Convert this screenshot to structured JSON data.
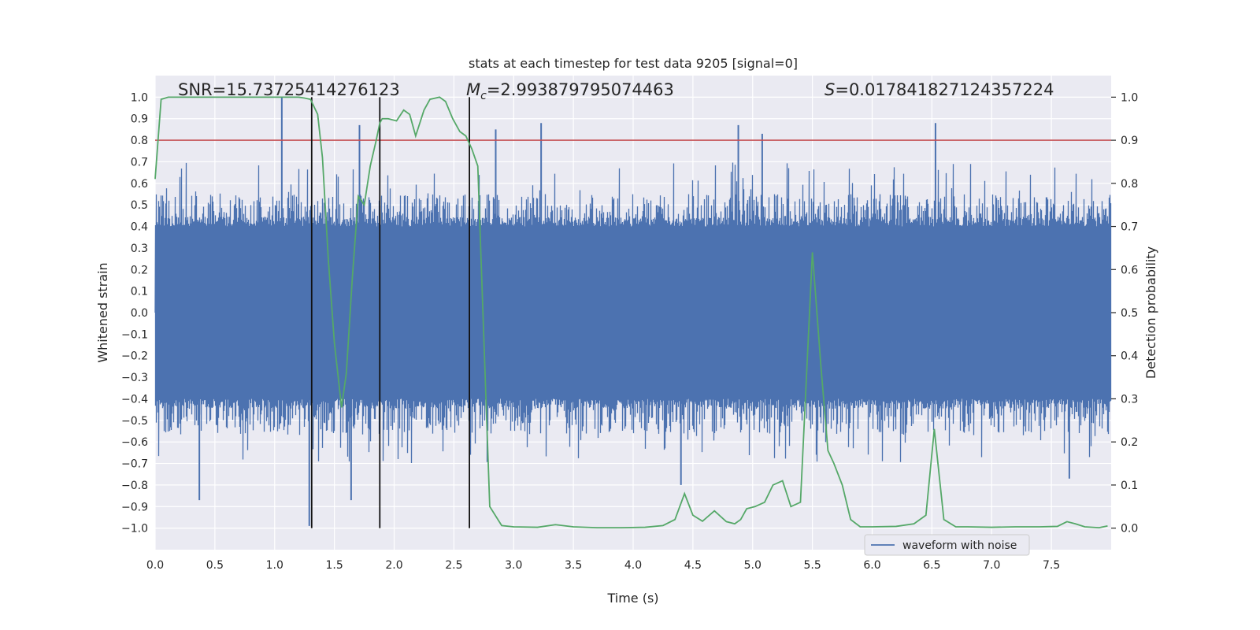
{
  "chart_data": {
    "type": "line",
    "title": "stats at each timestep for test data 9205 [signal=0]",
    "xlabel": "Time (s)",
    "ylabel_left": "Whitened strain",
    "ylabel_right": "Detection probability",
    "xlim": [
      0,
      8
    ],
    "ylim_left": [
      -1.1,
      1.1
    ],
    "ylim_right": [
      -0.05,
      1.05
    ],
    "xticks": [
      0.0,
      0.5,
      1.0,
      1.5,
      2.0,
      2.5,
      3.0,
      3.5,
      4.0,
      4.5,
      5.0,
      5.5,
      6.0,
      6.5,
      7.0,
      7.5
    ],
    "xtick_labels": [
      "0.0",
      "0.5",
      "1.0",
      "1.5",
      "2.0",
      "2.5",
      "3.0",
      "3.5",
      "4.0",
      "4.5",
      "5.0",
      "5.5",
      "6.0",
      "6.5",
      "7.0",
      "7.5"
    ],
    "yticks_left": [
      1.0,
      0.9,
      0.8,
      0.7,
      0.6,
      0.5,
      0.4,
      0.3,
      0.2,
      0.1,
      0.0,
      -0.1,
      -0.2,
      -0.3,
      -0.4,
      -0.5,
      -0.6,
      -0.7,
      -0.8,
      -0.9,
      -1.0
    ],
    "ytick_labels_left": [
      "1.0",
      "0.9",
      "0.8",
      "0.7",
      "0.6",
      "0.5",
      "0.4",
      "0.3",
      "0.2",
      "0.1",
      "0.0",
      "−0.1",
      "−0.2",
      "−0.3",
      "−0.4",
      "−0.5",
      "−0.6",
      "−0.7",
      "−0.8",
      "−0.9",
      "−1.0"
    ],
    "yticks_right": [
      1.0,
      0.9,
      0.8,
      0.7,
      0.6,
      0.5,
      0.4,
      0.3,
      0.2,
      0.1,
      0.0
    ],
    "ytick_labels_right": [
      "1.0",
      "0.9",
      "0.8",
      "0.7",
      "0.6",
      "0.5",
      "0.4",
      "0.3",
      "0.2",
      "0.1",
      "0.0"
    ],
    "threshold": {
      "axis": "right",
      "value": 0.9,
      "color": "#c44e52"
    },
    "vlines": [
      {
        "x": 1.31,
        "ymin": -1.0,
        "ymax": 1.0
      },
      {
        "x": 1.88,
        "ymin": -1.0,
        "ymax": 1.0
      },
      {
        "x": 2.63,
        "ymin": -1.0,
        "ymax": 1.0
      }
    ],
    "annotations": {
      "snr": "SNR=15.73725414276123",
      "mc_symbol": "M",
      "mc_sub": "c",
      "mc_value": "=2.993879795074463",
      "s_symbol": "S",
      "s_value": "=0.017841827124357224"
    },
    "legend": {
      "label": "waveform with noise",
      "location": "lower-right"
    },
    "waveform": {
      "name": "waveform with noise",
      "color": "#4c72b0",
      "dense_band": 0.4,
      "typical_peak": 0.55,
      "tallest_peaks": [
        {
          "x": 1.06,
          "y": 1.0
        },
        {
          "x": 1.29,
          "y": -0.99
        },
        {
          "x": 1.71,
          "y": 0.87
        },
        {
          "x": 2.85,
          "y": 0.85
        },
        {
          "x": 3.23,
          "y": 0.88
        },
        {
          "x": 4.88,
          "y": 0.87
        },
        {
          "x": 5.08,
          "y": 0.83
        },
        {
          "x": 6.53,
          "y": 0.88
        },
        {
          "x": 0.37,
          "y": -0.87
        },
        {
          "x": 1.64,
          "y": -0.87
        },
        {
          "x": 4.4,
          "y": -0.8
        },
        {
          "x": 7.65,
          "y": -0.77
        }
      ]
    },
    "probability": {
      "name": "detection probability",
      "color": "#55a868",
      "x": [
        0.0,
        0.05,
        0.11,
        0.2,
        0.3,
        0.5,
        0.7,
        0.9,
        1.05,
        1.2,
        1.25,
        1.3,
        1.36,
        1.4,
        1.45,
        1.5,
        1.56,
        1.6,
        1.65,
        1.7,
        1.75,
        1.8,
        1.85,
        1.88,
        1.9,
        1.95,
        2.02,
        2.08,
        2.13,
        2.18,
        2.25,
        2.3,
        2.38,
        2.43,
        2.49,
        2.55,
        2.6,
        2.65,
        2.7,
        2.8,
        2.9,
        3.0,
        3.2,
        3.35,
        3.5,
        3.7,
        3.9,
        4.1,
        4.25,
        4.35,
        4.43,
        4.5,
        4.58,
        4.68,
        4.78,
        4.85,
        4.9,
        4.95,
        5.02,
        5.1,
        5.17,
        5.25,
        5.32,
        5.4,
        5.5,
        5.57,
        5.63,
        5.68,
        5.75,
        5.82,
        5.9,
        6.0,
        6.2,
        6.35,
        6.45,
        6.52,
        6.6,
        6.7,
        6.8,
        7.0,
        7.2,
        7.4,
        7.55,
        7.63,
        7.7,
        7.78,
        7.9,
        7.97
      ],
      "y": [
        0.81,
        0.995,
        1.0,
        1.0,
        1.0,
        1.0,
        1.0,
        1.0,
        1.0,
        1.0,
        0.998,
        0.995,
        0.96,
        0.86,
        0.62,
        0.43,
        0.28,
        0.36,
        0.58,
        0.77,
        0.75,
        0.84,
        0.9,
        0.94,
        0.95,
        0.95,
        0.945,
        0.97,
        0.96,
        0.91,
        0.97,
        0.995,
        1.0,
        0.99,
        0.95,
        0.92,
        0.91,
        0.88,
        0.84,
        0.05,
        0.006,
        0.003,
        0.002,
        0.008,
        0.003,
        0.001,
        0.001,
        0.002,
        0.006,
        0.02,
        0.08,
        0.03,
        0.016,
        0.04,
        0.015,
        0.01,
        0.02,
        0.045,
        0.05,
        0.06,
        0.1,
        0.11,
        0.05,
        0.06,
        0.64,
        0.38,
        0.18,
        0.15,
        0.1,
        0.02,
        0.003,
        0.003,
        0.004,
        0.01,
        0.03,
        0.23,
        0.02,
        0.003,
        0.003,
        0.002,
        0.003,
        0.003,
        0.004,
        0.015,
        0.01,
        0.003,
        0.001,
        0.005
      ]
    }
  }
}
